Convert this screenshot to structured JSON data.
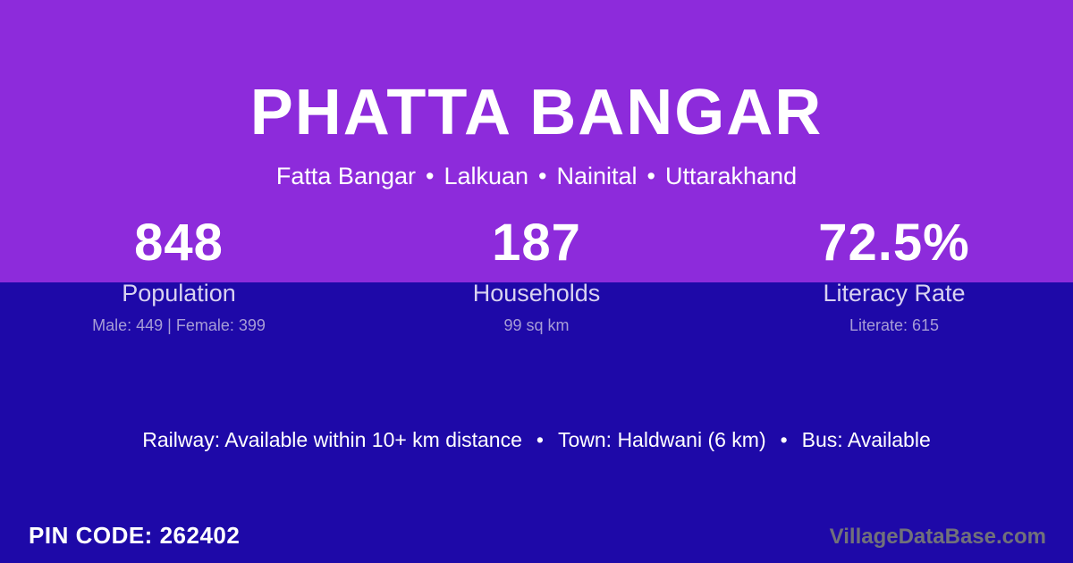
{
  "colors": {
    "top_background": "#8D2BDB",
    "bottom_background": "#1E09A8",
    "text_primary": "#FFFFFF",
    "stat_label": "#D8D2F0",
    "stat_detail": "#A79DD6",
    "watermark": "#71717A"
  },
  "header": {
    "village_title": "PHATTA BANGAR",
    "location_parts": [
      "Fatta Bangar",
      "Lalkuan",
      "Nainital",
      "Uttarakhand"
    ],
    "separator": "•"
  },
  "stats": [
    {
      "value": "848",
      "label": "Population",
      "detail": "Male: 449 | Female: 399"
    },
    {
      "value": "187",
      "label": "Households",
      "detail": "99 sq km"
    },
    {
      "value": "72.5%",
      "label": "Literacy Rate",
      "detail": "Literate: 615"
    }
  ],
  "transport": {
    "items": [
      "Railway: Available within 10+ km distance",
      "Town: Haldwani (6 km)",
      "Bus: Available"
    ],
    "separator": "•"
  },
  "footer": {
    "pin_code": "PIN CODE: 262402",
    "watermark": "VillageDataBase.com"
  }
}
